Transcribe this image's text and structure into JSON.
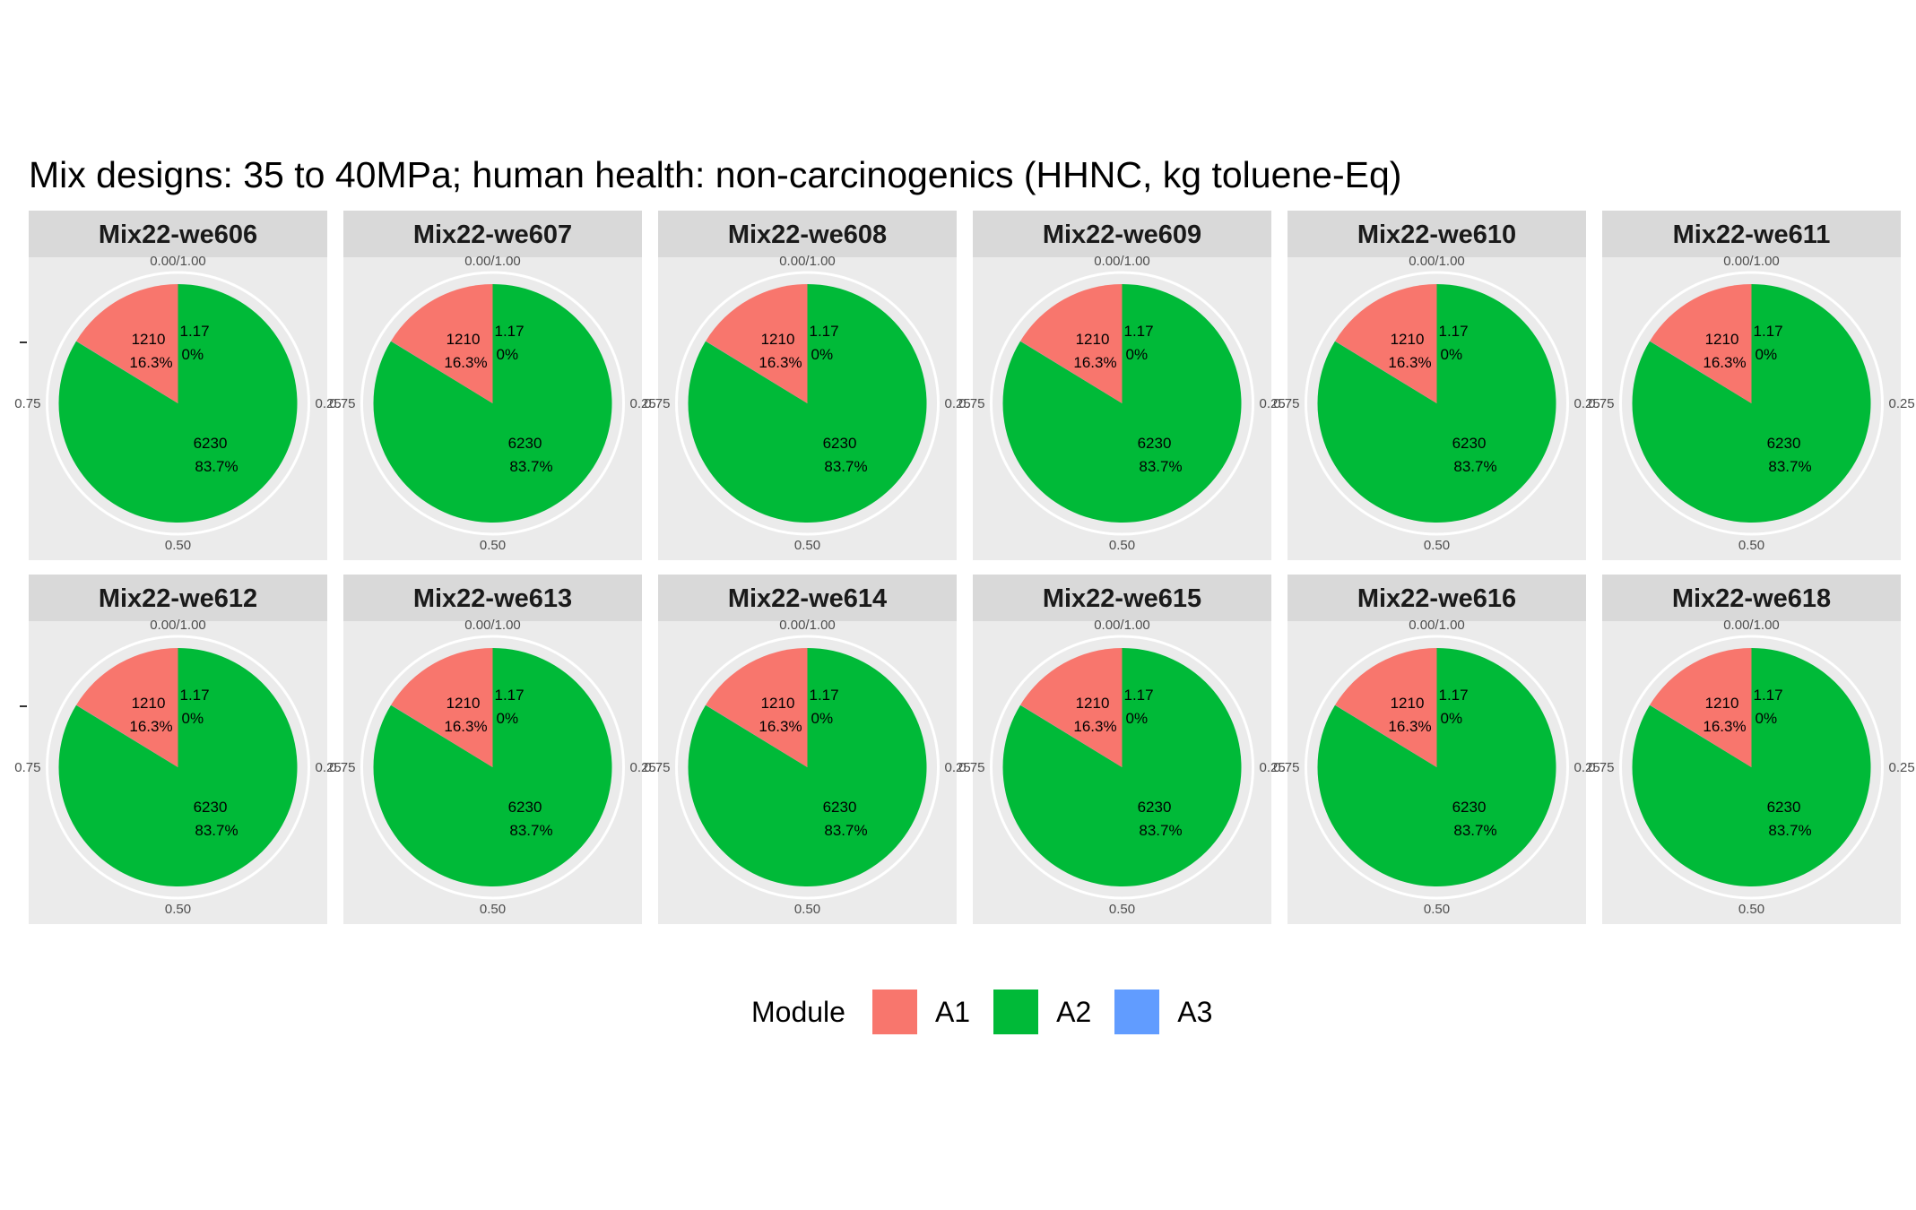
{
  "chart_data": {
    "type": "pie",
    "title": "Mix designs: 35 to 40MPa; human health: non-carcinogenics (HHNC, kg toluene-Eq)",
    "panel_tick_labels": [
      "0.00/1.00",
      "0.25",
      "0.50",
      "0.75"
    ],
    "legend": {
      "title": "Module",
      "position": "bottom",
      "entries": [
        {
          "name": "A1",
          "color": "#F8766D"
        },
        {
          "name": "A2",
          "color": "#00BA38"
        },
        {
          "name": "A3",
          "color": "#619CFF"
        }
      ]
    },
    "panels": [
      {
        "name": "Mix22-we606",
        "slices": [
          {
            "module": "A1",
            "value": 1210,
            "label": "1210",
            "pct": "16.3%"
          },
          {
            "module": "A2",
            "value": 6230,
            "label": "6230",
            "pct": "83.7%"
          },
          {
            "module": "A3",
            "value": 1.17,
            "label": "1.17",
            "pct": "0%"
          }
        ]
      },
      {
        "name": "Mix22-we607",
        "slices": [
          {
            "module": "A1",
            "value": 1210,
            "label": "1210",
            "pct": "16.3%"
          },
          {
            "module": "A2",
            "value": 6230,
            "label": "6230",
            "pct": "83.7%"
          },
          {
            "module": "A3",
            "value": 1.17,
            "label": "1.17",
            "pct": "0%"
          }
        ]
      },
      {
        "name": "Mix22-we608",
        "slices": [
          {
            "module": "A1",
            "value": 1210,
            "label": "1210",
            "pct": "16.3%"
          },
          {
            "module": "A2",
            "value": 6230,
            "label": "6230",
            "pct": "83.7%"
          },
          {
            "module": "A3",
            "value": 1.17,
            "label": "1.17",
            "pct": "0%"
          }
        ]
      },
      {
        "name": "Mix22-we609",
        "slices": [
          {
            "module": "A1",
            "value": 1210,
            "label": "1210",
            "pct": "16.3%"
          },
          {
            "module": "A2",
            "value": 6230,
            "label": "6230",
            "pct": "83.7%"
          },
          {
            "module": "A3",
            "value": 1.17,
            "label": "1.17",
            "pct": "0%"
          }
        ]
      },
      {
        "name": "Mix22-we610",
        "slices": [
          {
            "module": "A1",
            "value": 1210,
            "label": "1210",
            "pct": "16.3%"
          },
          {
            "module": "A2",
            "value": 6230,
            "label": "6230",
            "pct": "83.7%"
          },
          {
            "module": "A3",
            "value": 1.17,
            "label": "1.17",
            "pct": "0%"
          }
        ]
      },
      {
        "name": "Mix22-we611",
        "slices": [
          {
            "module": "A1",
            "value": 1210,
            "label": "1210",
            "pct": "16.3%"
          },
          {
            "module": "A2",
            "value": 6230,
            "label": "6230",
            "pct": "83.7%"
          },
          {
            "module": "A3",
            "value": 1.17,
            "label": "1.17",
            "pct": "0%"
          }
        ]
      },
      {
        "name": "Mix22-we612",
        "slices": [
          {
            "module": "A1",
            "value": 1210,
            "label": "1210",
            "pct": "16.3%"
          },
          {
            "module": "A2",
            "value": 6230,
            "label": "6230",
            "pct": "83.7%"
          },
          {
            "module": "A3",
            "value": 1.17,
            "label": "1.17",
            "pct": "0%"
          }
        ]
      },
      {
        "name": "Mix22-we613",
        "slices": [
          {
            "module": "A1",
            "value": 1210,
            "label": "1210",
            "pct": "16.3%"
          },
          {
            "module": "A2",
            "value": 6230,
            "label": "6230",
            "pct": "83.7%"
          },
          {
            "module": "A3",
            "value": 1.17,
            "label": "1.17",
            "pct": "0%"
          }
        ]
      },
      {
        "name": "Mix22-we614",
        "slices": [
          {
            "module": "A1",
            "value": 1210,
            "label": "1210",
            "pct": "16.3%"
          },
          {
            "module": "A2",
            "value": 6230,
            "label": "6230",
            "pct": "83.7%"
          },
          {
            "module": "A3",
            "value": 1.17,
            "label": "1.17",
            "pct": "0%"
          }
        ]
      },
      {
        "name": "Mix22-we615",
        "slices": [
          {
            "module": "A1",
            "value": 1210,
            "label": "1210",
            "pct": "16.3%"
          },
          {
            "module": "A2",
            "value": 6230,
            "label": "6230",
            "pct": "83.7%"
          },
          {
            "module": "A3",
            "value": 1.17,
            "label": "1.17",
            "pct": "0%"
          }
        ]
      },
      {
        "name": "Mix22-we616",
        "slices": [
          {
            "module": "A1",
            "value": 1210,
            "label": "1210",
            "pct": "16.3%"
          },
          {
            "module": "A2",
            "value": 6230,
            "label": "6230",
            "pct": "83.7%"
          },
          {
            "module": "A3",
            "value": 1.17,
            "label": "1.17",
            "pct": "0%"
          }
        ]
      },
      {
        "name": "Mix22-we618",
        "slices": [
          {
            "module": "A1",
            "value": 1210,
            "label": "1210",
            "pct": "16.3%"
          },
          {
            "module": "A2",
            "value": 6230,
            "label": "6230",
            "pct": "83.7%"
          },
          {
            "module": "A3",
            "value": 1.17,
            "label": "1.17",
            "pct": "0%"
          }
        ]
      }
    ]
  }
}
